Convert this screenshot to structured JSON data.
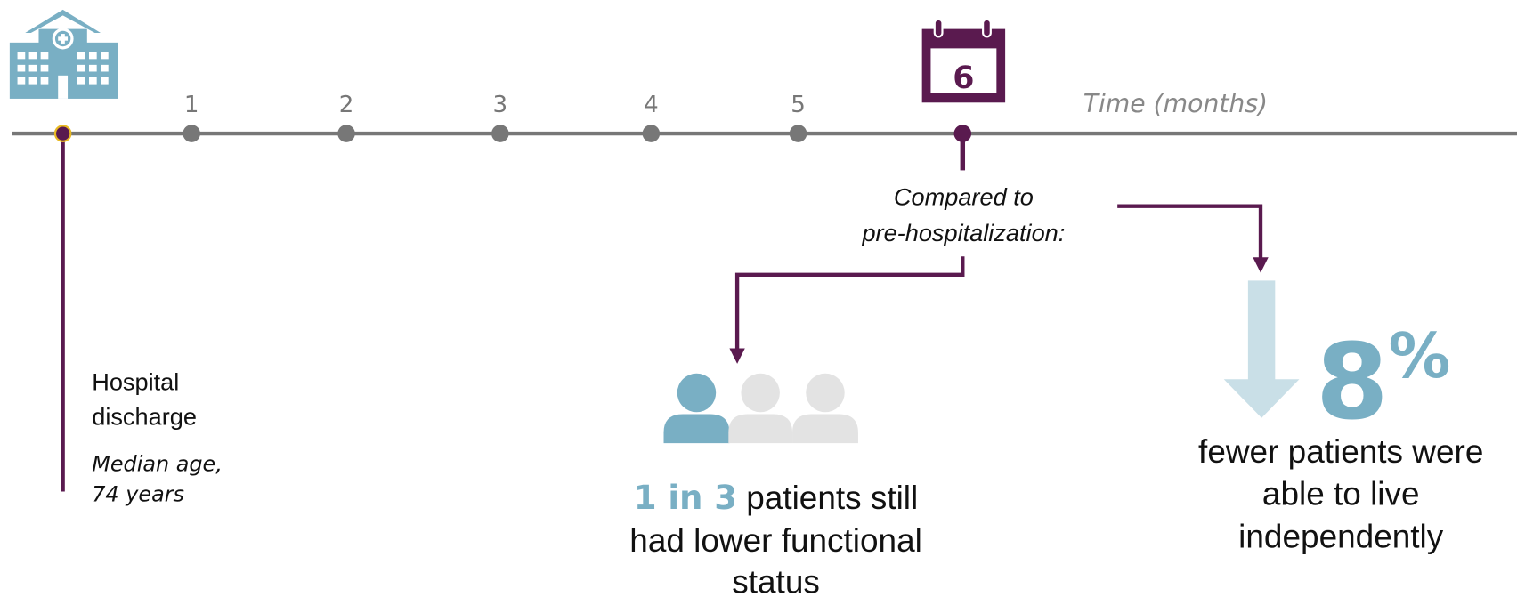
{
  "timeline": {
    "axis_label": "Time (months)",
    "ticks": [
      "1",
      "2",
      "3",
      "4",
      "5"
    ],
    "calendar_month": "6"
  },
  "discharge": {
    "label_line1": "Hospital",
    "label_line2": "discharge",
    "age_line1": "Median age,",
    "age_line2": "74 years"
  },
  "comparison": {
    "line1": "Compared to",
    "line2": "pre-hospitalization:"
  },
  "functional": {
    "highlight": "1 in 3",
    "text1": " patients still",
    "text2": "had lower functional",
    "text3": "status"
  },
  "independence": {
    "value": "8",
    "unit": "%",
    "text1": "fewer patients were",
    "text2": "able to live",
    "text3": "independently"
  }
}
